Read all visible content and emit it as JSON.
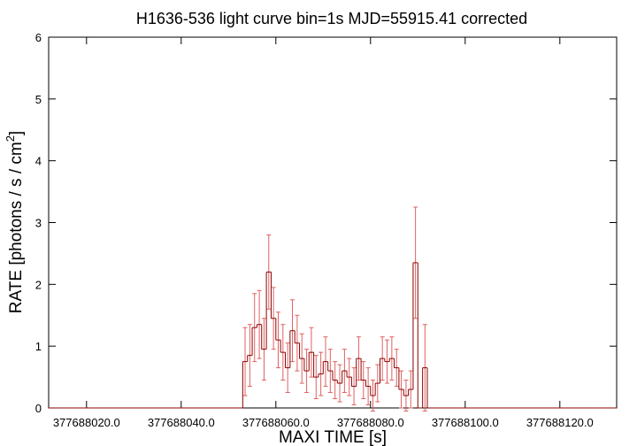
{
  "chart_data": {
    "type": "step",
    "title": "H1636-536 light curve bin=1s MJD=55915.41 corrected",
    "xlabel": "MAXI TIME [s]",
    "ylabel": "RATE [photons / s / cm",
    "ylabel_sup": "2",
    "ylabel_end": "]",
    "xlim": [
      377688012,
      377688132
    ],
    "xticks": [
      {
        "value": 377688020,
        "label": "377688020.0"
      },
      {
        "value": 377688040,
        "label": "377688040.0"
      },
      {
        "value": 377688060,
        "label": "377688060.0"
      },
      {
        "value": 377688080,
        "label": "377688080.0"
      },
      {
        "value": 377688100,
        "label": "377688100.0"
      },
      {
        "value": 377688120,
        "label": "377688120.0"
      }
    ],
    "ylim": [
      0,
      6
    ],
    "yticks": [
      0,
      1,
      2,
      3,
      4,
      5,
      6
    ],
    "bin_width": 1,
    "x": [
      377688012.5,
      377688013.5,
      377688014.5,
      377688015.5,
      377688016.5,
      377688017.5,
      377688018.5,
      377688019.5,
      377688020.5,
      377688021.5,
      377688022.5,
      377688023.5,
      377688024.5,
      377688025.5,
      377688026.5,
      377688027.5,
      377688028.5,
      377688029.5,
      377688030.5,
      377688031.5,
      377688032.5,
      377688033.5,
      377688034.5,
      377688035.5,
      377688036.5,
      377688037.5,
      377688038.5,
      377688039.5,
      377688040.5,
      377688041.5,
      377688042.5,
      377688043.5,
      377688044.5,
      377688045.5,
      377688046.5,
      377688047.5,
      377688048.5,
      377688049.5,
      377688050.5,
      377688051.5,
      377688052.5,
      377688053.5,
      377688054.5,
      377688055.5,
      377688056.5,
      377688057.5,
      377688058.5,
      377688059.5,
      377688060.5,
      377688061.5,
      377688062.5,
      377688063.5,
      377688064.5,
      377688065.5,
      377688066.5,
      377688067.5,
      377688068.5,
      377688069.5,
      377688070.5,
      377688071.5,
      377688072.5,
      377688073.5,
      377688074.5,
      377688075.5,
      377688076.5,
      377688077.5,
      377688078.5,
      377688079.5,
      377688080.5,
      377688081.5,
      377688082.5,
      377688083.5,
      377688084.5,
      377688085.5,
      377688086.5,
      377688087.5,
      377688088.5,
      377688089.5,
      377688090.5,
      377688091.5,
      377688092.5,
      377688093.5,
      377688094.5,
      377688095.5,
      377688096.5,
      377688097.5,
      377688098.5,
      377688099.5,
      377688100.5,
      377688101.5,
      377688102.5,
      377688103.5,
      377688104.5,
      377688105.5,
      377688106.5,
      377688107.5,
      377688108.5,
      377688109.5,
      377688110.5,
      377688111.5,
      377688112.5,
      377688113.5,
      377688114.5,
      377688115.5,
      377688116.5,
      377688117.5,
      377688118.5,
      377688119.5,
      377688120.5,
      377688121.5,
      377688122.5,
      377688123.5,
      377688124.5,
      377688125.5,
      377688126.5,
      377688127.5,
      377688128.5,
      377688129.5,
      377688130.5,
      377688131.5
    ],
    "values": [
      0,
      0,
      0,
      0,
      0,
      0,
      0,
      0,
      0,
      0,
      0,
      0,
      0,
      0,
      0,
      0,
      0,
      0,
      0,
      0,
      0,
      0,
      0,
      0,
      0,
      0,
      0,
      0,
      0,
      0,
      0,
      0,
      0,
      0,
      0,
      0,
      0,
      0,
      0,
      0,
      0,
      0.75,
      0.85,
      1.3,
      1.35,
      0.95,
      2.2,
      1.45,
      1.1,
      0.9,
      0.65,
      1.25,
      1.05,
      0.8,
      0.6,
      0.9,
      0.5,
      0.55,
      0.75,
      0.6,
      0.45,
      0.4,
      0.6,
      0.5,
      0.35,
      0.8,
      0.45,
      0.35,
      0.2,
      0.4,
      0.8,
      0.75,
      0.8,
      0.65,
      0.3,
      0.2,
      0.3,
      2.35,
      0,
      0.65,
      0,
      0,
      0,
      0,
      0,
      0,
      0,
      0,
      0,
      0,
      0,
      0,
      0,
      0,
      0,
      0,
      0,
      0,
      0,
      0,
      0,
      0,
      0,
      0,
      0,
      0,
      0,
      0,
      0,
      0,
      0,
      0,
      0,
      0,
      0,
      0,
      0,
      0,
      0,
      0
    ],
    "errors": [
      0,
      0,
      0,
      0,
      0,
      0,
      0,
      0,
      0,
      0,
      0,
      0,
      0,
      0,
      0,
      0,
      0,
      0,
      0,
      0,
      0,
      0,
      0,
      0,
      0,
      0,
      0,
      0,
      0,
      0,
      0,
      0,
      0,
      0,
      0,
      0,
      0,
      0,
      0,
      0,
      0,
      0.55,
      0.5,
      0.55,
      0.55,
      0.5,
      0.6,
      0.5,
      0.45,
      0.45,
      0.4,
      0.5,
      0.45,
      0.4,
      0.35,
      0.4,
      0.35,
      0.35,
      0.4,
      0.35,
      0.3,
      0.3,
      0.35,
      0.3,
      0.3,
      0.35,
      0.3,
      0.3,
      0.25,
      0.3,
      0.35,
      0.35,
      0.35,
      0.3,
      0.3,
      0.25,
      0.3,
      0.9,
      0,
      0.7,
      0,
      0,
      0,
      0,
      0,
      0,
      0,
      0,
      0,
      0,
      0,
      0,
      0,
      0,
      0,
      0,
      0,
      0,
      0,
      0,
      0,
      0,
      0,
      0,
      0,
      0,
      0,
      0,
      0,
      0,
      0,
      0,
      0,
      0,
      0,
      0,
      0,
      0,
      0,
      0
    ],
    "color": "#8b0000",
    "error_color": "#e06060"
  }
}
